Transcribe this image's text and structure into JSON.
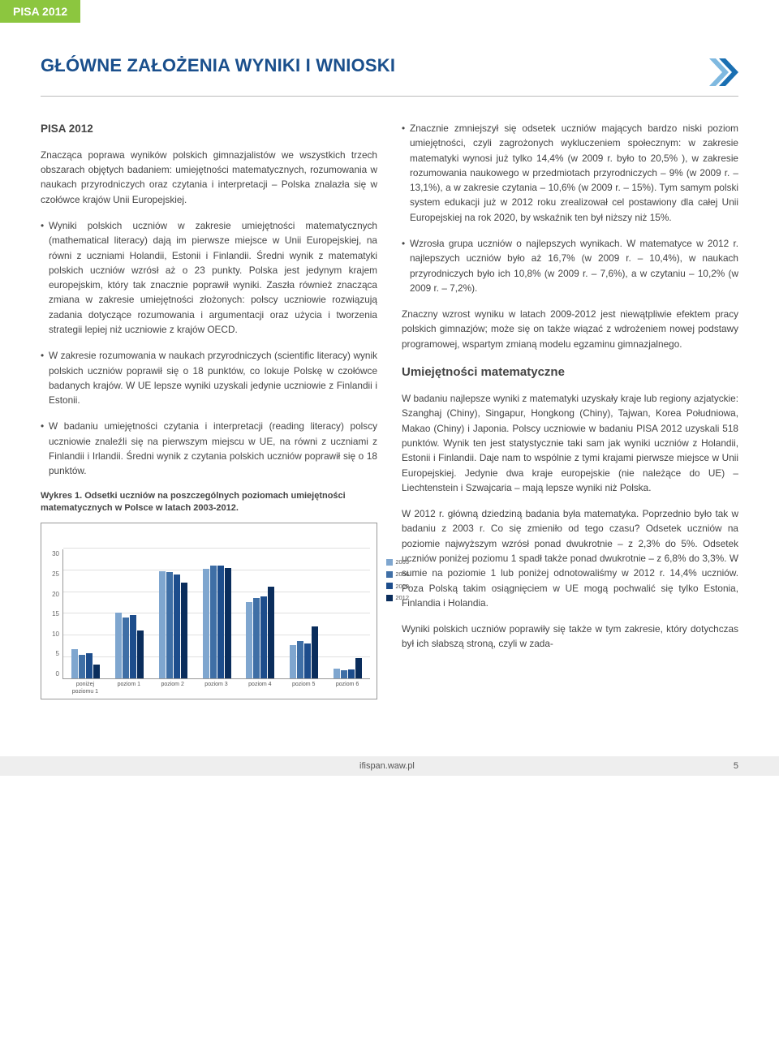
{
  "header_band": "PISA 2012",
  "title": "GŁÓWNE ZAŁOŻENIA WYNIKI I WNIOSKI",
  "logo": {
    "chevron1": "#7fb9e0",
    "chevron2": "#1a6fb2"
  },
  "left": {
    "sub": "PISA 2012",
    "intro": "Znacząca poprawa wyników polskich gimnazjalistów we wszystkich trzech obszarach objętych badaniem: umiejętności matematycznych, rozumowania w naukach przyrodniczych oraz czytania i interpretacji – Polska znalazła się w czołówce krajów Unii Europejskiej.",
    "b1": "Wyniki polskich uczniów w zakresie umiejętności matematycznych (mathematical literacy) dają im pierwsze miejsce w Unii Europejskiej, na równi z uczniami Holandii, Estonii i Finlandii. Średni wynik z matematyki polskich uczniów wzrósł aż o 23 punkty. Polska jest jedynym krajem europejskim, który tak znacznie poprawił wyniki. Zaszła również znacząca zmiana w zakresie umiejętności złożonych: polscy uczniowie rozwiązują zadania dotyczące rozumowania i argumentacji oraz użycia i tworzenia strategii lepiej niż uczniowie z krajów OECD.",
    "b2": "W zakresie rozumowania w naukach przyrodniczych (scientific literacy) wynik polskich uczniów poprawił się o 18 punktów, co lokuje Polskę w czołówce badanych krajów. W UE lepsze wyniki uzyskali jedynie uczniowie z Finlandii i Estonii.",
    "b3": "W badaniu umiejętności czytania i interpretacji (reading literacy) polscy uczniowie znaleźli się na pierwszym miejscu w UE, na równi z uczniami z Finlandii i Irlandii. Średni wynik z czytania polskich uczniów poprawił się o 18 punktów.",
    "chart_title": "Wykres 1. Odsetki uczniów na poszczególnych poziomach umiejętności matematycznych w Polsce w latach 2003-2012."
  },
  "chart": {
    "ymax": 30,
    "ytick": 5,
    "yticks": [
      "30",
      "25",
      "20",
      "15",
      "10",
      "5",
      "0"
    ],
    "categories": [
      "poniżej poziomu 1",
      "poziom 1",
      "poziom 2",
      "poziom 3",
      "poziom 4",
      "poziom 5",
      "poziom 6"
    ],
    "series_labels": [
      "2003",
      "2006",
      "2009",
      "2012"
    ],
    "series_colors": [
      "#7fa6cf",
      "#3f6fa6",
      "#1d4d8c",
      "#0a2d5c"
    ],
    "data": [
      [
        6.8,
        5.5,
        5.8,
        3.3
      ],
      [
        15.2,
        14.2,
        14.7,
        11.1
      ],
      [
        24.8,
        24.7,
        24.0,
        22.1
      ],
      [
        25.3,
        26.2,
        26.1,
        25.5
      ],
      [
        17.7,
        18.6,
        19.0,
        21.3
      ],
      [
        7.8,
        8.6,
        8.2,
        12.0
      ],
      [
        2.3,
        2.0,
        2.2,
        4.7
      ]
    ],
    "grid_color": "#e0e0e0",
    "border_color": "#999999"
  },
  "right": {
    "b1": "Znacznie zmniejszył się odsetek uczniów mających bardzo niski poziom umiejętności, czyli zagrożonych wykluczeniem społecznym: w zakresie matematyki wynosi już tylko 14,4% (w 2009 r. było to 20,5% ), w zakresie rozumowania naukowego w przedmiotach przyrodniczych – 9% (w 2009 r. – 13,1%), a w zakresie czytania – 10,6% (w 2009 r. – 15%). Tym samym polski system edukacji już w 2012 roku zrealizował cel postawiony dla całej Unii Europejskiej na rok 2020, by wskaźnik ten był niższy niż 15%.",
    "b2": "Wzrosła grupa uczniów o najlepszych wynikach. W matematyce w 2012 r. najlepszych uczniów było aż 16,7% (w 2009 r. – 10,4%), w naukach przyrodniczych było ich 10,8% (w 2009 r. – 7,6%), a w czytaniu – 10,2% (w 2009 r. – 7,2%).",
    "p1": "Znaczny wzrost wyniku w latach 2009-2012 jest niewątpliwie efektem pracy polskich gimnazjów; może się on także wiązać z wdrożeniem nowej podstawy programowej, wspartym zmianą modelu egzaminu gimnazjalnego.",
    "h1": "Umiejętności matematyczne",
    "p2": "W badaniu najlepsze wyniki z matematyki uzyskały kraje lub regiony azjatyckie: Szanghaj (Chiny), Singapur, Hongkong (Chiny), Tajwan, Korea Południowa, Makao (Chiny) i Japonia. Polscy uczniowie w badaniu PISA 2012 uzyskali 518 punktów. Wynik ten jest statystycznie taki sam jak wyniki uczniów z Holandii, Estonii i Finlandii. Daje nam to wspólnie z tymi krajami pierwsze miejsce w Unii Europejskiej. Jedynie dwa kraje europejskie (nie należące do UE) – Liechtenstein i Szwajcaria – mają lepsze wyniki niż Polska.",
    "p3": "W 2012 r. główną dziedziną badania była matematyka. Poprzednio było tak w badaniu z 2003 r. Co się zmieniło od tego czasu? Odsetek uczniów na poziomie najwyższym wzrósł ponad dwukrotnie – z 2,3% do 5%. Odsetek uczniów poniżej poziomu 1 spadł także ponad dwukrotnie – z 6,8% do 3,3%. W sumie na poziomie 1 lub poniżej odnotowaliśmy w 2012 r. 14,4% uczniów. Poza Polską takim osiągnięciem w UE mogą pochwalić się tylko Estonia, Finlandia i Holandia.",
    "p4": "Wyniki polskich uczniów poprawiły się także w tym zakresie, który dotychczas był ich słabszą stroną, czyli w zada-"
  },
  "footer": {
    "site": "ifispan.waw.pl",
    "page": "5"
  }
}
